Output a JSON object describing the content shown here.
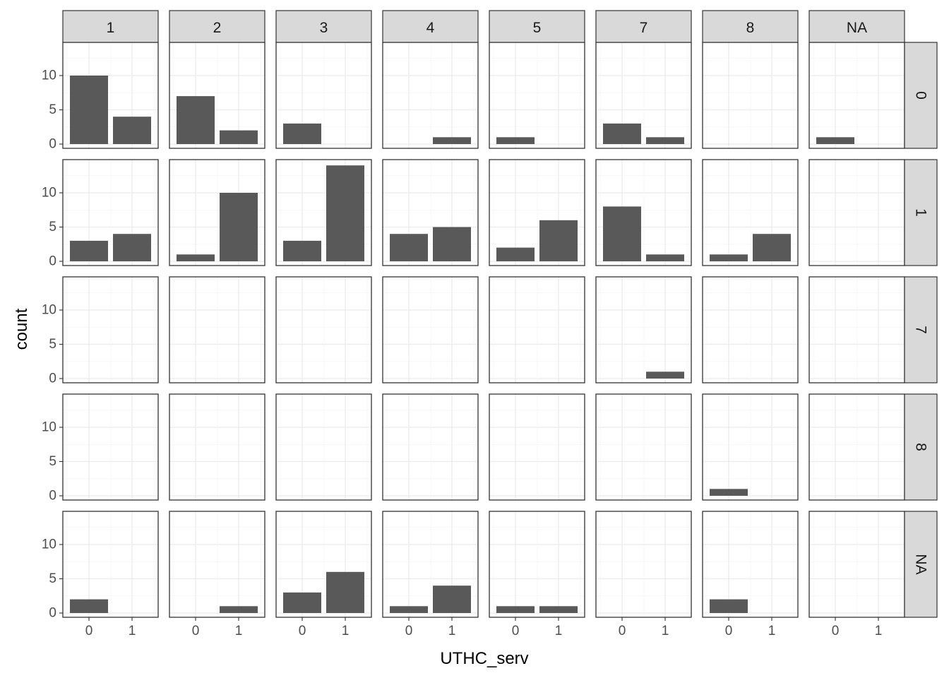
{
  "chart_data": {
    "type": "bar",
    "xlabel": "UTHC_serv",
    "ylabel": "count",
    "x_categories": [
      "0",
      "1"
    ],
    "column_facets": [
      "1",
      "2",
      "3",
      "4",
      "5",
      "7",
      "8",
      "NA"
    ],
    "row_facets": [
      "0",
      "1",
      "7",
      "8",
      "NA"
    ],
    "y_ticks": [
      0,
      5,
      10
    ],
    "y_tick_labels": [
      "0",
      "5",
      "10"
    ],
    "ylim": [
      0,
      14
    ],
    "grid": true,
    "bar_color": "#595959",
    "strip_color": "#d9d9d9",
    "counts": [
      [
        [
          10,
          4
        ],
        [
          7,
          2
        ],
        [
          3,
          0
        ],
        [
          0,
          1
        ],
        [
          1,
          0
        ],
        [
          3,
          1
        ],
        [
          0,
          0
        ],
        [
          1,
          0
        ]
      ],
      [
        [
          3,
          4
        ],
        [
          1,
          10
        ],
        [
          3,
          14
        ],
        [
          4,
          5
        ],
        [
          2,
          6
        ],
        [
          8,
          1
        ],
        [
          1,
          4
        ],
        [
          0,
          0
        ]
      ],
      [
        [
          0,
          0
        ],
        [
          0,
          0
        ],
        [
          0,
          0
        ],
        [
          0,
          0
        ],
        [
          0,
          0
        ],
        [
          0,
          1
        ],
        [
          0,
          0
        ],
        [
          0,
          0
        ]
      ],
      [
        [
          0,
          0
        ],
        [
          0,
          0
        ],
        [
          0,
          0
        ],
        [
          0,
          0
        ],
        [
          0,
          0
        ],
        [
          0,
          0
        ],
        [
          1,
          0
        ],
        [
          0,
          0
        ]
      ],
      [
        [
          2,
          0
        ],
        [
          0,
          1
        ],
        [
          3,
          6
        ],
        [
          1,
          4
        ],
        [
          1,
          1
        ],
        [
          0,
          0
        ],
        [
          2,
          0
        ],
        [
          0,
          0
        ]
      ]
    ]
  }
}
